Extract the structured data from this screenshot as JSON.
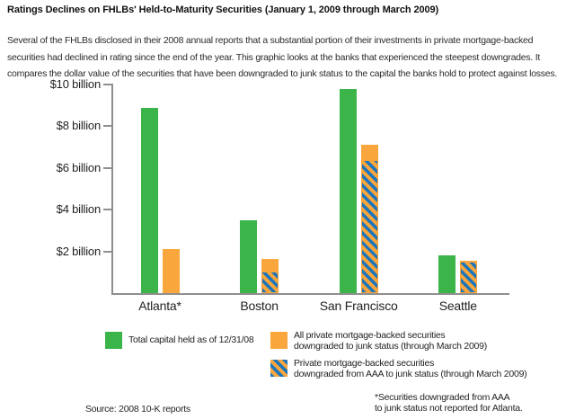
{
  "title": "Ratings Declines on FHLBs' Held-to-Maturity Securities (January 1, 2009 through March 2009)",
  "description": "Several of the FHLBs disclosed in their 2008 annual reports that a substantial portion of their investments in private mortgage-backed securities had declined in rating since the end of the year. This graphic looks at the banks that experienced the steepest downgrades. It compares the dollar value of the securities that have been downgraded to junk status to the capital the banks hold to protect against losses.",
  "colors": {
    "green": "#3bb54a",
    "orange": "#f9a63c",
    "blue": "#1c75bc",
    "axis_gray": "#8f8f8f"
  },
  "legend": {
    "total_capital": {
      "lines": [
        "Total capital held as of 12/31/08",
        ""
      ]
    },
    "junk": {
      "lines": [
        "All private mortgage-backed securities",
        "downgraded to junk status (through March 2009)"
      ]
    },
    "aaa": {
      "lines": [
        "Private mortgage-backed securities",
        "downgraded from AAA to junk status (through March 2009)"
      ]
    }
  },
  "source": "Source: 2008 10-K reports",
  "footnote_lines": [
    "*Securities downgraded from AAA",
    "to junk status not reported for Atlanta."
  ],
  "chart_data": {
    "type": "bar",
    "categories": [
      "Atlanta*",
      "Boston",
      "San Francisco",
      "Seattle"
    ],
    "series": [
      {
        "name": "Total capital held as of 12/31/08",
        "color_key": "green",
        "values": [
          8.9,
          3.5,
          9.8,
          1.8
        ]
      },
      {
        "name": "All private mortgage-backed securities downgraded to junk status (through March 2009)",
        "color_key": "orange",
        "values": [
          2.1,
          1.65,
          7.1,
          1.55
        ]
      },
      {
        "name": "Private mortgage-backed securities downgraded from AAA to junk status (through March 2009)",
        "color_key": "hatch",
        "values": [
          null,
          1.0,
          6.35,
          1.45
        ]
      }
    ],
    "yticks": [
      2,
      4,
      6,
      8,
      10
    ],
    "ytick_labels": [
      "$2 billion",
      "$4 billion",
      "$6 billion",
      "$8 billion",
      "$10 billion"
    ],
    "ylim": [
      0,
      10
    ],
    "unit": "billions of US dollars",
    "grid": false,
    "legend_position": "below"
  }
}
